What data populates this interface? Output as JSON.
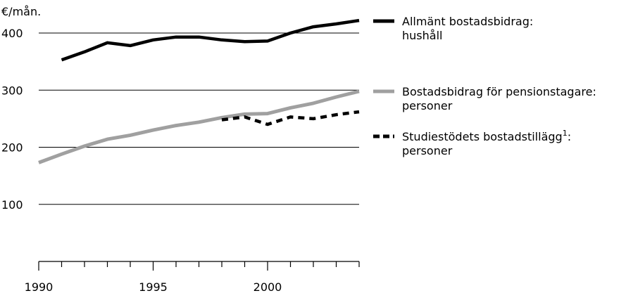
{
  "chart_data": {
    "type": "line",
    "title": "",
    "ylabel": "€/mån.",
    "xlabel": "",
    "xlim": [
      1990,
      2004
    ],
    "ylim": [
      0,
      400
    ],
    "grid": "horizontal",
    "legend_position": "right",
    "yticks": [
      "100",
      "200",
      "300",
      "400"
    ],
    "xticks": [
      "1990",
      "1995",
      "2000"
    ],
    "series": [
      {
        "key": "allmant",
        "name_lines": [
          "Allmänt bostadsbidrag:",
          "hushåll"
        ],
        "color": "#000000",
        "style": "solid",
        "x": [
          1991,
          1992,
          1993,
          1994,
          1995,
          1996,
          1997,
          1998,
          1999,
          2000,
          2001,
          2002,
          2003,
          2004
        ],
        "values": [
          353,
          367,
          383,
          378,
          388,
          393,
          393,
          388,
          385,
          386,
          400,
          411,
          416,
          422
        ]
      },
      {
        "key": "pension",
        "name_lines": [
          "Bostadsbidrag för pensionstagare:",
          "personer"
        ],
        "color": "#a0a0a0",
        "style": "solid",
        "x": [
          1990,
          1991,
          1992,
          1993,
          1994,
          1995,
          1996,
          1997,
          1998,
          1999,
          2000,
          2001,
          2002,
          2003,
          2004
        ],
        "values": [
          173,
          188,
          202,
          214,
          221,
          230,
          238,
          244,
          252,
          258,
          259,
          269,
          277,
          288,
          298
        ]
      },
      {
        "key": "studie",
        "name_lines": [
          "Studiestödets bostadstillägg",
          "personer"
        ],
        "name_sup": "1",
        "name_suffix": ":",
        "color": "#000000",
        "style": "dashed",
        "x": [
          1998,
          1999,
          2000,
          2001,
          2002,
          2003,
          2004
        ],
        "values": [
          248,
          253,
          240,
          253,
          250,
          257,
          262
        ]
      }
    ]
  }
}
